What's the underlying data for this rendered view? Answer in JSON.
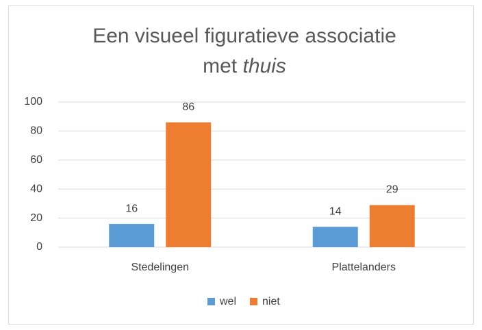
{
  "chart_data": {
    "type": "bar",
    "title": [
      "Een visueel figuratieve associatie",
      "met",
      "thuis"
    ],
    "categories": [
      "Stedelingen",
      "Plattelanders"
    ],
    "series": [
      {
        "name": "wel",
        "color": "#5b9bd5",
        "values": [
          16,
          14
        ]
      },
      {
        "name": "niet",
        "color": "#ed7d31",
        "values": [
          86,
          29
        ]
      }
    ],
    "ylim": [
      0,
      100
    ],
    "yticks": [
      0,
      20,
      40,
      60,
      80,
      100
    ],
    "grid": true,
    "legend": "bottom"
  }
}
